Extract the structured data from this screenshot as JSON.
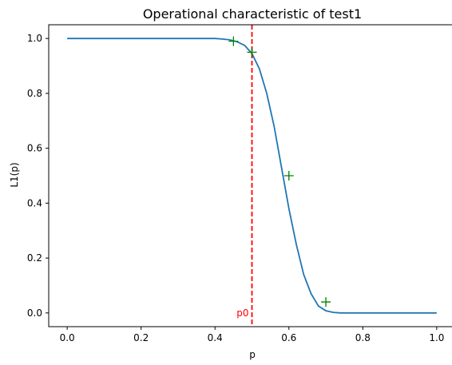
{
  "chart_data": {
    "type": "line",
    "title": "Operational characteristic of test1",
    "xlabel": "p",
    "ylabel": "L1(p)",
    "xlim": [
      -0.05,
      1.05
    ],
    "ylim": [
      -0.05,
      1.05
    ],
    "xticks": [
      0.0,
      0.2,
      0.4,
      0.6,
      0.8,
      1.0
    ],
    "xtick_labels": [
      "0.0",
      "0.2",
      "0.4",
      "0.6",
      "0.8",
      "1.0"
    ],
    "yticks": [
      0.0,
      0.2,
      0.4,
      0.6,
      0.8,
      1.0
    ],
    "ytick_labels": [
      "0.0",
      "0.2",
      "0.4",
      "0.6",
      "0.8",
      "1.0"
    ],
    "grid": false,
    "curve": {
      "color": "#1f77b4",
      "x": [
        0.0,
        0.05,
        0.1,
        0.15,
        0.2,
        0.25,
        0.3,
        0.35,
        0.4,
        0.42,
        0.44,
        0.46,
        0.48,
        0.5,
        0.52,
        0.54,
        0.56,
        0.58,
        0.6,
        0.62,
        0.64,
        0.66,
        0.68,
        0.7,
        0.72,
        0.74,
        0.76,
        0.8,
        0.85,
        0.9,
        0.95,
        1.0
      ],
      "y": [
        1.0,
        1.0,
        1.0,
        1.0,
        1.0,
        1.0,
        1.0,
        1.0,
        1.0,
        0.998,
        0.995,
        0.988,
        0.975,
        0.945,
        0.89,
        0.8,
        0.68,
        0.53,
        0.38,
        0.25,
        0.14,
        0.07,
        0.025,
        0.008,
        0.002,
        0.0,
        0.0,
        0.0,
        0.0,
        0.0,
        0.0,
        0.0
      ]
    },
    "markers": {
      "color": "#008000",
      "symbol": "+",
      "points": [
        {
          "x": 0.45,
          "y": 0.99
        },
        {
          "x": 0.5,
          "y": 0.95
        },
        {
          "x": 0.6,
          "y": 0.5
        },
        {
          "x": 0.7,
          "y": 0.04
        }
      ]
    },
    "reference_line": {
      "x": 0.5,
      "label": "p0",
      "color": "#ff0000",
      "style": "dashed"
    }
  }
}
